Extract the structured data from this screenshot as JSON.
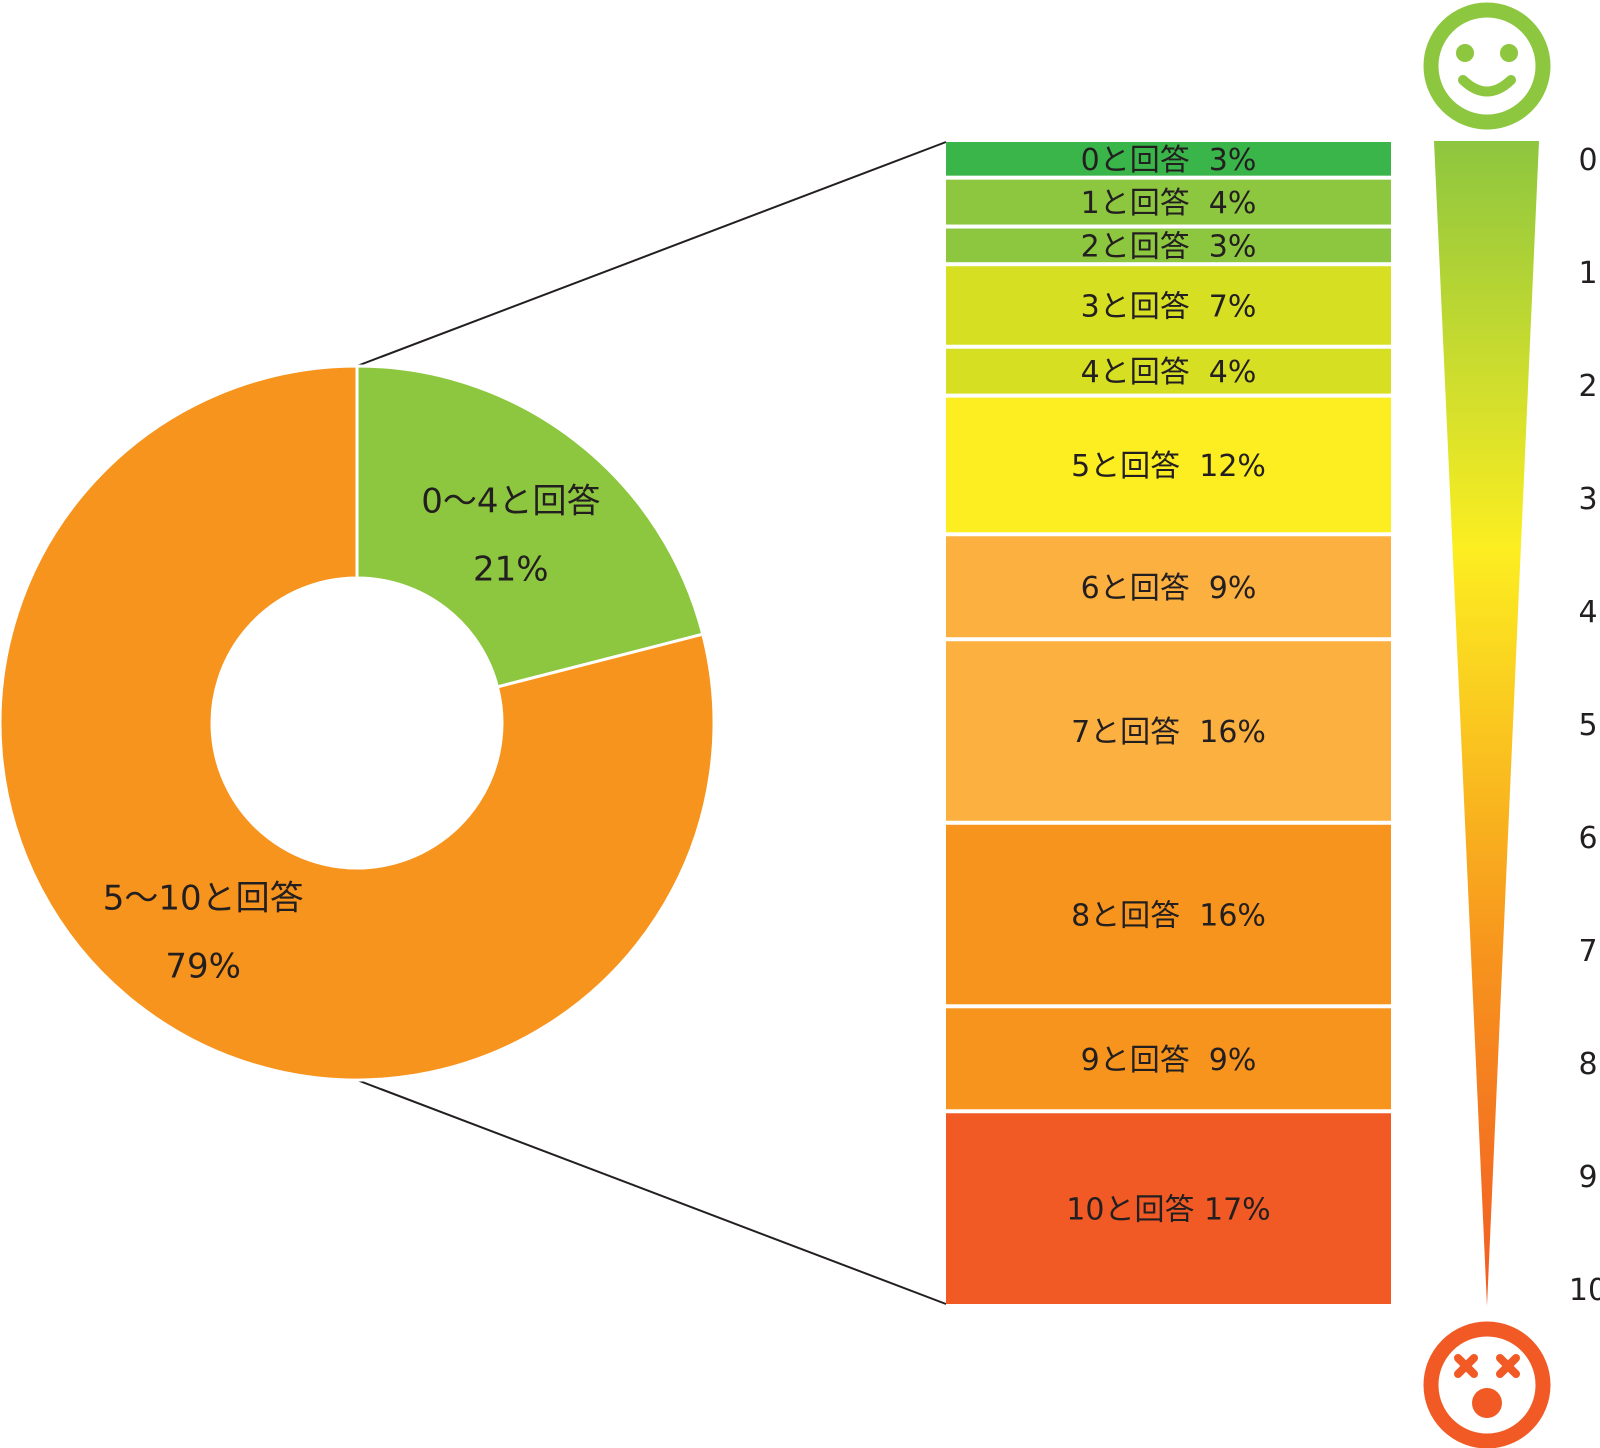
{
  "chart_data": [
    {
      "type": "pie",
      "variant": "donut",
      "slices": [
        {
          "label": "0〜4と回答",
          "value": 21,
          "value_label": "21%",
          "color": "#8dc63f"
        },
        {
          "label": "5〜10と回答",
          "value": 79,
          "value_label": "79%",
          "color": "#f7941d"
        }
      ]
    },
    {
      "type": "bar",
      "variant": "stacked-100",
      "orientation": "vertical",
      "segments": [
        {
          "score": 0,
          "label": "0と回答  3%",
          "value": 3,
          "color": "#39b54a"
        },
        {
          "score": 1,
          "label": "1と回答  4%",
          "value": 4,
          "color": "#8dc63f"
        },
        {
          "score": 2,
          "label": "2と回答  3%",
          "value": 3,
          "color": "#8dc63f"
        },
        {
          "score": 3,
          "label": "3と回答  7%",
          "value": 7,
          "color": "#d7df23"
        },
        {
          "score": 4,
          "label": "4と回答  4%",
          "value": 4,
          "color": "#d7df23"
        },
        {
          "score": 5,
          "label": "5と回答  12%",
          "value": 12,
          "color": "#fcee21"
        },
        {
          "score": 6,
          "label": "6と回答  9%",
          "value": 9,
          "color": "#fbb040"
        },
        {
          "score": 7,
          "label": "7と回答  16%",
          "value": 16,
          "color": "#fbb040"
        },
        {
          "score": 8,
          "label": "8と回答  16%",
          "value": 16,
          "color": "#f7941d"
        },
        {
          "score": 9,
          "label": "9と回答  9%",
          "value": 9,
          "color": "#f7941d"
        },
        {
          "score": 10,
          "label": "10と回答 17%",
          "value": 17,
          "color": "#f15a24"
        }
      ]
    },
    {
      "type": "scale",
      "ticks": [
        "0",
        "1",
        "2",
        "3",
        "4",
        "5",
        "6",
        "7",
        "8",
        "9",
        "10"
      ],
      "gradient": [
        "#8dc63f",
        "#fcee21",
        "#f7941d",
        "#f15a24"
      ],
      "top_icon": "smiley-face-icon",
      "bottom_icon": "dizzy-face-icon",
      "top_icon_color": "#8dc63f",
      "bottom_icon_color": "#f15a24"
    }
  ]
}
